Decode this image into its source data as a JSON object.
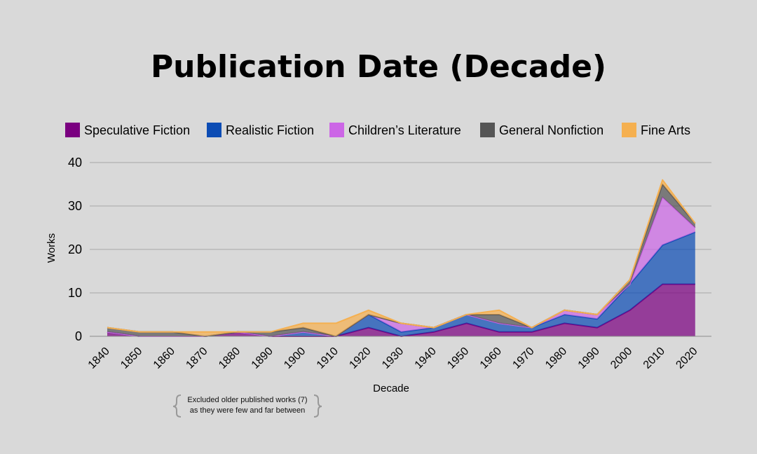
{
  "chart_data": {
    "type": "area",
    "stacked": true,
    "title": "Publication Date (Decade)",
    "xlabel": "Decade",
    "ylabel": "Works",
    "ylim": [
      0,
      40
    ],
    "yticks": [
      0,
      10,
      20,
      30,
      40
    ],
    "grid": true,
    "legend_position": "top",
    "categories": [
      "1840",
      "1850",
      "1860",
      "1870",
      "1880",
      "1890",
      "1900",
      "1910",
      "1920",
      "1930",
      "1940",
      "1950",
      "1960",
      "1970",
      "1980",
      "1990",
      "2000",
      "2010",
      "2020"
    ],
    "series": [
      {
        "name": "Speculative Fiction",
        "color": "#7a0080",
        "values": [
          1,
          0,
          0,
          0,
          1,
          0,
          0,
          0,
          2,
          0,
          1,
          3,
          1,
          1,
          3,
          2,
          6,
          12,
          12
        ]
      },
      {
        "name": "Realistic Fiction",
        "color": "#0c4cb4",
        "values": [
          0,
          0,
          0,
          0,
          0,
          0,
          1,
          0,
          3,
          1,
          1,
          2,
          2,
          1,
          2,
          2,
          6,
          9,
          12
        ]
      },
      {
        "name": "Children’s Literature",
        "color": "#cc66e6",
        "values": [
          0,
          0,
          0,
          0,
          0,
          0,
          0,
          0,
          0,
          2,
          0,
          0,
          0,
          0,
          1,
          1,
          0,
          11,
          1
        ]
      },
      {
        "name": "General Nonfiction",
        "color": "#555555",
        "values": [
          1,
          1,
          1,
          0,
          0,
          1,
          1,
          0,
          0,
          0,
          0,
          0,
          2,
          0,
          0,
          0,
          1,
          3,
          1
        ]
      },
      {
        "name": "Fine Arts",
        "color": "#f5b050",
        "values": [
          0,
          0,
          0,
          1,
          0,
          0,
          1,
          3,
          1,
          0,
          0,
          0,
          1,
          0,
          0,
          0,
          0,
          1,
          0
        ]
      }
    ],
    "annotation_lines": [
      "Excluded older published works (7)",
      "as they were few and far between"
    ]
  }
}
